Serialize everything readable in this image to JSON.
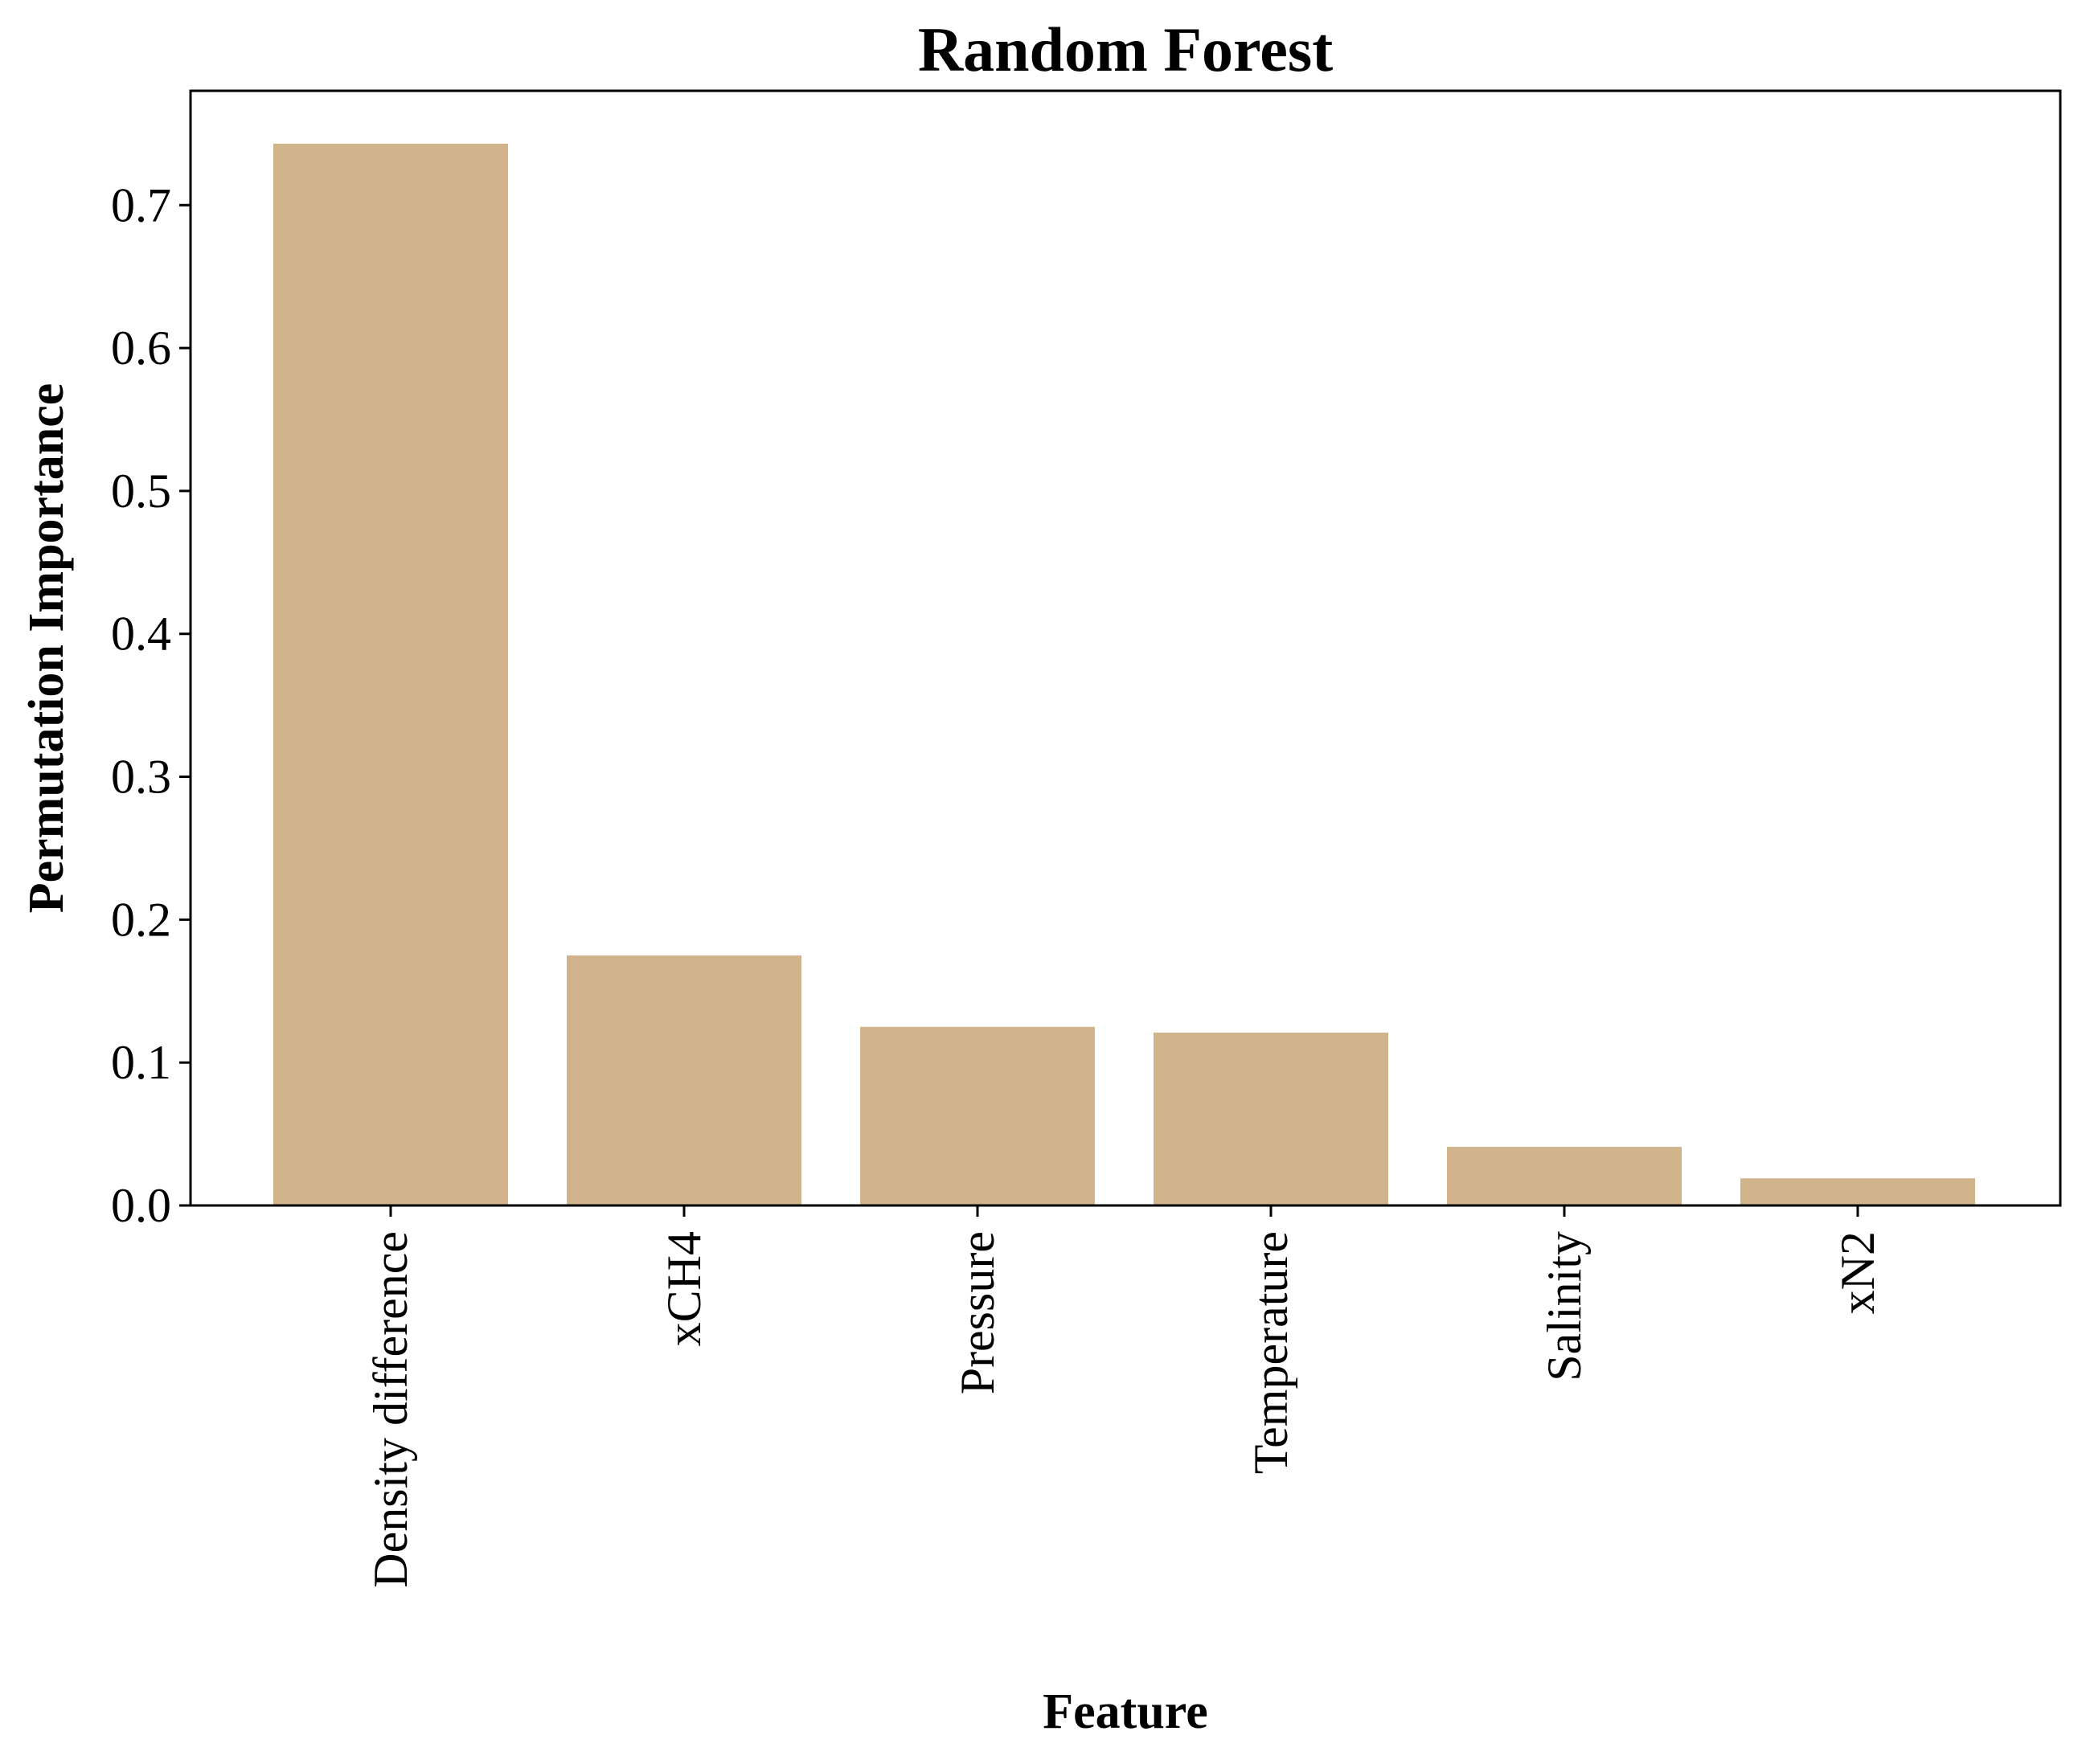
{
  "chart_data": {
    "type": "bar",
    "title": "Random Forest",
    "xlabel": "Feature",
    "ylabel": "Permutation Importance",
    "categories": [
      "Density difference",
      "xCH4",
      "Pressure",
      "Temperature",
      "Salinity",
      "xN2"
    ],
    "values": [
      0.743,
      0.175,
      0.125,
      0.121,
      0.041,
      0.019
    ],
    "ylim": [
      0,
      0.78
    ],
    "yticks": [
      "0.0",
      "0.1",
      "0.2",
      "0.3",
      "0.4",
      "0.5",
      "0.6",
      "0.7"
    ],
    "bar_color": "#D2B48C",
    "grid": false,
    "legend": false
  }
}
